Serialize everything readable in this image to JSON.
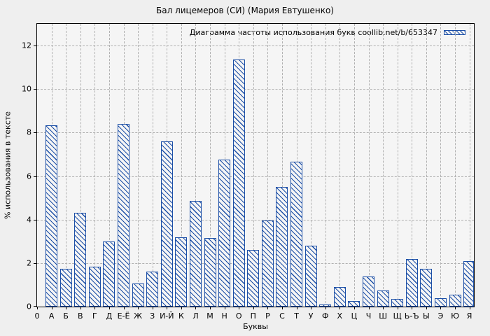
{
  "colors": {
    "bar": "#1b4ea6",
    "grid": "#b0b0b0",
    "axis": "#000000",
    "background": "#efefef",
    "plot_background": "#f5f5f5",
    "text": "#000000"
  },
  "chart_data": {
    "type": "bar",
    "title": "Бал лицемеров (СИ) (Мария Евтушенко)",
    "legend": {
      "label": "Диаграмма частоты использования букв coollib.net/b/653347",
      "position": "top-right",
      "swatch": "diagonal-hatch"
    },
    "xlabel": "Буквы",
    "ylabel": "% использования в тексте",
    "origin_tick_label": "0",
    "categories": [
      "А",
      "Б",
      "В",
      "Г",
      "Д",
      "Е-Ё",
      "Ж",
      "З",
      "И-Й",
      "К",
      "Л",
      "М",
      "Н",
      "О",
      "П",
      "Р",
      "С",
      "Т",
      "У",
      "Ф",
      "Х",
      "Ц",
      "Ч",
      "Ш",
      "Щ",
      "Ь-Ъ",
      "Ы",
      "Э",
      "Ю",
      "Я"
    ],
    "values": [
      8.35,
      1.75,
      4.3,
      1.85,
      3.0,
      8.4,
      1.05,
      1.6,
      7.6,
      3.2,
      4.85,
      3.15,
      6.75,
      11.35,
      2.6,
      3.95,
      5.5,
      6.65,
      2.8,
      0.1,
      0.9,
      0.25,
      1.4,
      0.75,
      0.35,
      2.2,
      1.75,
      0.4,
      0.55,
      2.1
    ],
    "ylim": [
      0,
      13
    ],
    "yticks": [
      0,
      2,
      4,
      6,
      8,
      10,
      12
    ],
    "grid": true,
    "bar_style": "diagonal-hatch"
  }
}
